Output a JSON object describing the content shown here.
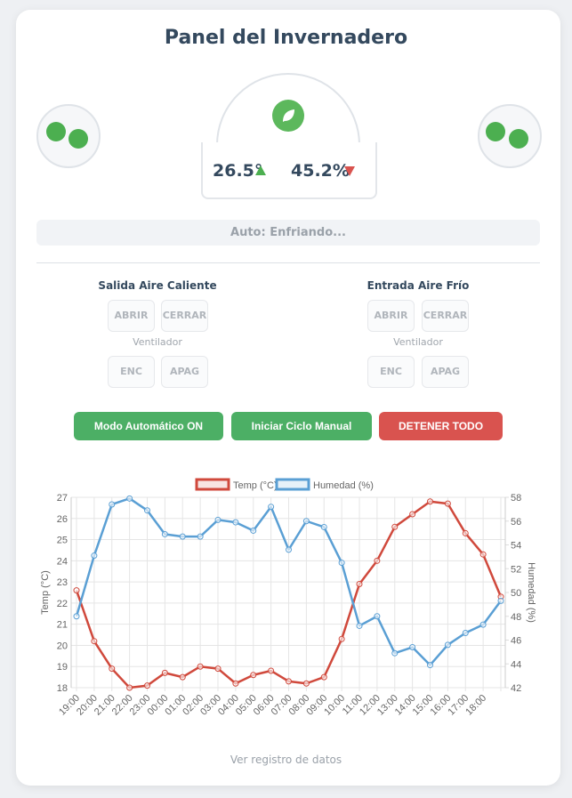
{
  "header": {
    "title": "Panel del Invernadero"
  },
  "readings": {
    "temperature": "26.5°",
    "humidity": "45.2%"
  },
  "status": "Auto: Enfriando...",
  "controls": [
    {
      "title": "Salida Aire Caliente",
      "buttons": [
        "ABRIR",
        "CERRAR"
      ],
      "fan_label": "Ventilador",
      "fan_buttons": [
        "ENC",
        "APAG"
      ]
    },
    {
      "title": "Entrada Aire Frío",
      "buttons": [
        "ABRIR",
        "CERRAR"
      ],
      "fan_label": "Ventilador",
      "fan_buttons": [
        "ENC",
        "APAG"
      ]
    }
  ],
  "actions": [
    "Modo Automático ON",
    "Iniciar Ciclo Manual",
    "DETENER TODO"
  ],
  "chart_data": {
    "type": "line",
    "categories": [
      "19:00",
      "20:00",
      "21:00",
      "22:00",
      "23:00",
      "00:00",
      "01:00",
      "02:00",
      "03:00",
      "04:00",
      "05:00",
      "06:00",
      "07:00",
      "08:00",
      "09:00",
      "10:00",
      "11:00",
      "12:00",
      "13:00",
      "14:00",
      "15:00",
      "16:00",
      "17:00",
      "18:00",
      null
    ],
    "ylabel": "Temp (°C)",
    "y2label": "Humedad (%)",
    "ylim": [
      18,
      27
    ],
    "yticks": [
      18,
      19,
      20,
      21,
      22,
      23,
      24,
      25,
      26,
      27
    ],
    "y2lim": [
      42,
      58
    ],
    "y2ticks": [
      42,
      44,
      46,
      48,
      50,
      52,
      54,
      56,
      58
    ],
    "grid": true,
    "legend": "top",
    "series": [
      {
        "name": "Temp (°C)",
        "color": "#d0493c",
        "axis": "y",
        "values": [
          22.6,
          20.2,
          18.9,
          18.0,
          18.1,
          18.7,
          18.5,
          19.0,
          18.9,
          18.2,
          18.6,
          18.8,
          18.3,
          18.2,
          18.5,
          20.3,
          22.9,
          24.0,
          25.6,
          26.2,
          26.8,
          26.7,
          25.3,
          24.3,
          22.3
        ]
      },
      {
        "name": "Humedad (%)",
        "color": "#5a9fd4",
        "axis": "y2",
        "values": [
          48.0,
          53.1,
          57.4,
          57.9,
          56.9,
          54.9,
          54.7,
          54.7,
          56.1,
          55.9,
          55.2,
          57.2,
          53.6,
          56.0,
          55.5,
          52.5,
          47.2,
          48.0,
          44.9,
          45.4,
          43.9,
          45.6,
          46.6,
          47.3,
          49.3
        ]
      }
    ]
  },
  "footer_link": "Ver registro de datos"
}
